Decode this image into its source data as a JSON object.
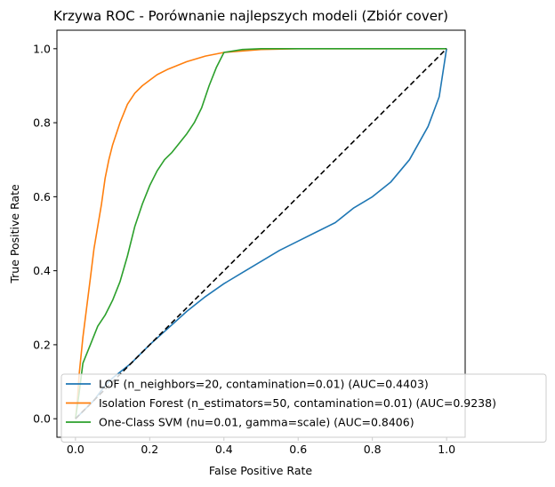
{
  "chart_data": {
    "type": "line",
    "title": "Krzywa ROC - Porównanie najlepszych modeli (Zbiór cover)",
    "xlabel": "False Positive Rate",
    "ylabel": "True Positive Rate",
    "xlim": [
      -0.05,
      1.05
    ],
    "ylim": [
      -0.05,
      1.05
    ],
    "xticks": [
      "0.0",
      "0.2",
      "0.4",
      "0.6",
      "0.8",
      "1.0"
    ],
    "yticks": [
      "0.0",
      "0.2",
      "0.4",
      "0.6",
      "0.8",
      "1.0"
    ],
    "grid": false,
    "legend_position": "lower-right",
    "series": [
      {
        "name": "LOF (n_neighbors=20, contamination=0.01) (AUC=0.4403)",
        "color": "#1f77b4",
        "x": [
          0.0,
          0.02,
          0.05,
          0.08,
          0.1,
          0.15,
          0.2,
          0.25,
          0.3,
          0.35,
          0.4,
          0.45,
          0.5,
          0.55,
          0.6,
          0.65,
          0.7,
          0.75,
          0.8,
          0.85,
          0.9,
          0.95,
          0.98,
          1.0
        ],
        "y": [
          0.0,
          0.02,
          0.05,
          0.09,
          0.11,
          0.15,
          0.2,
          0.245,
          0.29,
          0.33,
          0.365,
          0.395,
          0.425,
          0.455,
          0.48,
          0.505,
          0.53,
          0.57,
          0.6,
          0.64,
          0.7,
          0.79,
          0.87,
          1.0
        ]
      },
      {
        "name": "Isolation Forest (n_estimators=50, contamination=0.01) (AUC=0.9238)",
        "color": "#ff7f0e",
        "x": [
          0.0,
          0.005,
          0.01,
          0.02,
          0.03,
          0.04,
          0.05,
          0.06,
          0.07,
          0.08,
          0.09,
          0.1,
          0.12,
          0.14,
          0.16,
          0.18,
          0.2,
          0.22,
          0.25,
          0.3,
          0.35,
          0.4,
          0.5,
          0.6,
          0.8,
          1.0
        ],
        "y": [
          0.0,
          0.05,
          0.12,
          0.22,
          0.3,
          0.38,
          0.46,
          0.52,
          0.58,
          0.65,
          0.7,
          0.74,
          0.8,
          0.85,
          0.88,
          0.9,
          0.915,
          0.93,
          0.945,
          0.965,
          0.98,
          0.99,
          0.998,
          1.0,
          1.0,
          1.0
        ]
      },
      {
        "name": "One-Class SVM (nu=0.01, gamma=scale) (AUC=0.8406)",
        "color": "#2ca02c",
        "x": [
          0.0,
          0.01,
          0.02,
          0.04,
          0.06,
          0.08,
          0.1,
          0.12,
          0.14,
          0.16,
          0.18,
          0.2,
          0.22,
          0.24,
          0.26,
          0.28,
          0.3,
          0.32,
          0.34,
          0.36,
          0.38,
          0.4,
          0.45,
          0.5,
          0.6,
          0.8,
          1.0
        ],
        "y": [
          0.0,
          0.07,
          0.15,
          0.2,
          0.25,
          0.28,
          0.32,
          0.37,
          0.44,
          0.52,
          0.58,
          0.63,
          0.67,
          0.7,
          0.72,
          0.745,
          0.77,
          0.8,
          0.84,
          0.9,
          0.95,
          0.99,
          0.998,
          1.0,
          1.0,
          1.0,
          1.0
        ]
      },
      {
        "name": "",
        "color": "#000000",
        "dashed": true,
        "x": [
          0.0,
          1.0
        ],
        "y": [
          0.0,
          1.0
        ]
      }
    ]
  }
}
